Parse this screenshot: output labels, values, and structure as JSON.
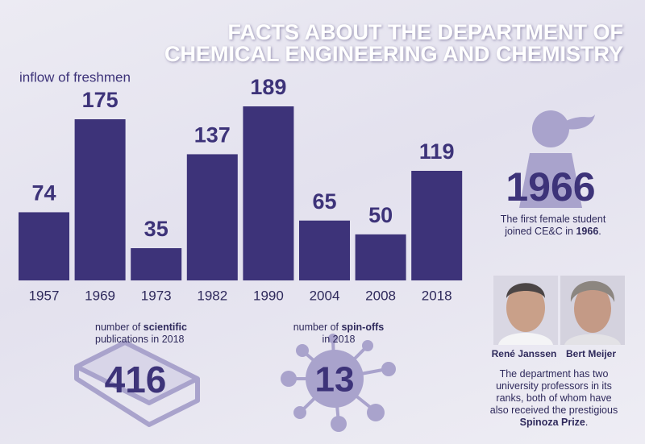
{
  "chart_data": {
    "type": "bar",
    "title": [
      "FACTS ABOUT THE DEPARTMENT OF",
      "CHEMICAL ENGINEERING AND CHEMISTRY"
    ],
    "subtitle": "inflow of freshmen",
    "categories": [
      "1957",
      "1969",
      "1973",
      "1982",
      "1990",
      "2004",
      "2008",
      "2018"
    ],
    "values": [
      74,
      175,
      35,
      137,
      189,
      65,
      50,
      119
    ],
    "color": "#3d3379"
  },
  "female_student": {
    "year": 1966,
    "text": [
      "The first female student joined CE&C in ",
      "1966",
      "."
    ]
  },
  "publications": {
    "label": [
      "number of ",
      "scientific",
      " publications in 2018"
    ],
    "count": 416
  },
  "spin_offs": {
    "label": [
      "number of ",
      "spin-offs",
      " in 2018"
    ],
    "count": 13
  },
  "professors": {
    "names": [
      "René Janssen",
      "Bert Meijer"
    ],
    "text": [
      "The department has two university professors in its ranks, both of whom have also received the prestigious ",
      "Spinoza Prize",
      "."
    ]
  }
}
